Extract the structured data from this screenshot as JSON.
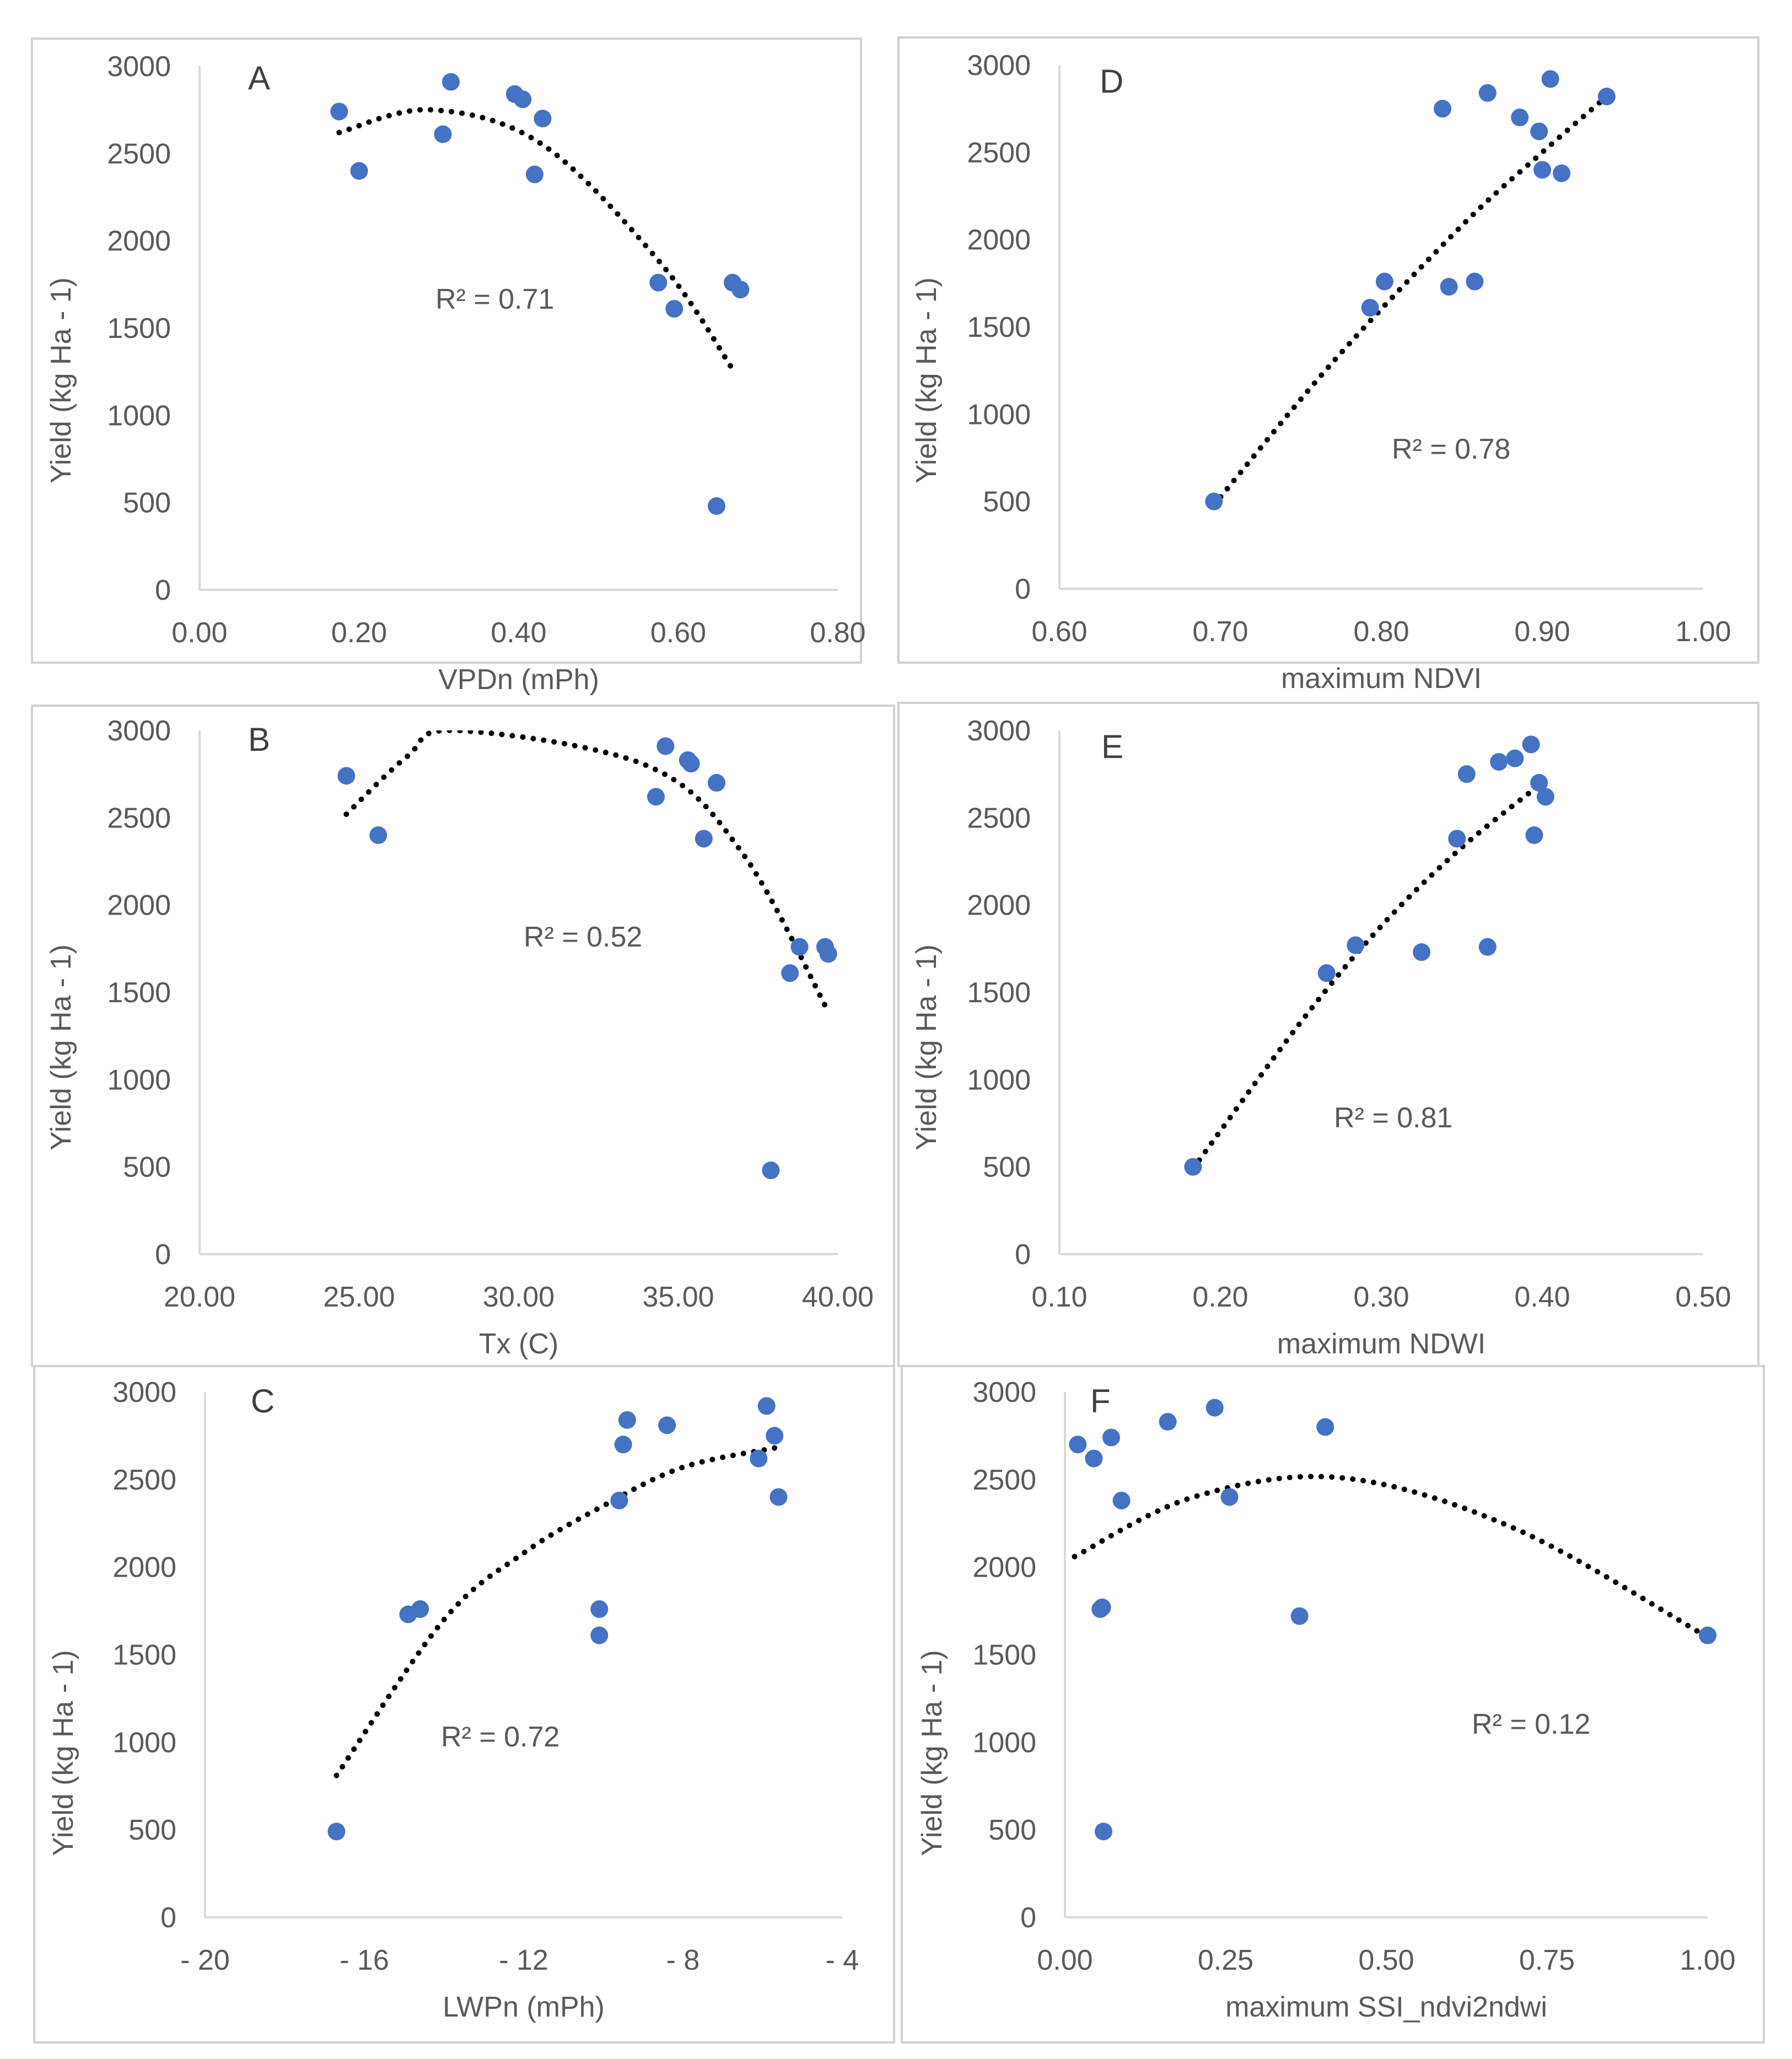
{
  "colors": {
    "point": "#4472C4",
    "trend": "#000000",
    "axis": "#d9d9d9",
    "text": "#595959"
  },
  "chart_data": [
    {
      "type": "scatter",
      "panel": "A",
      "xlabel": "VPDn (mPh)",
      "ylabel": "Yield (kg Ha - 1)",
      "xlim": [
        0.0,
        0.8
      ],
      "ylim": [
        0,
        3000
      ],
      "xticks": [
        "0.00",
        "0.20",
        "0.40",
        "0.60",
        "0.80"
      ],
      "yticks": [
        "0",
        "500",
        "1000",
        "1500",
        "2000",
        "2500",
        "3000"
      ],
      "r2_text": "R² = 0.71",
      "points": [
        [
          0.175,
          2740
        ],
        [
          0.2,
          2400
        ],
        [
          0.305,
          2610
        ],
        [
          0.315,
          2910
        ],
        [
          0.395,
          2840
        ],
        [
          0.405,
          2810
        ],
        [
          0.42,
          2380
        ],
        [
          0.43,
          2700
        ],
        [
          0.575,
          1760
        ],
        [
          0.595,
          1610
        ],
        [
          0.648,
          480
        ],
        [
          0.668,
          1760
        ],
        [
          0.678,
          1720
        ]
      ],
      "trendline": {
        "degree": 2,
        "x_range": [
          0.175,
          0.67
        ],
        "points": [
          [
            0.175,
            2620
          ],
          [
            0.29,
            2750
          ],
          [
            0.43,
            2550
          ],
          [
            0.58,
            1860
          ],
          [
            0.67,
            1250
          ]
        ]
      }
    },
    {
      "type": "scatter",
      "panel": "D",
      "xlabel": "maximum NDVI",
      "ylabel": "Yield (kg Ha - 1)",
      "xlim": [
        0.6,
        1.0
      ],
      "ylim": [
        0,
        3000
      ],
      "xticks": [
        "0.60",
        "0.70",
        "0.80",
        "0.90",
        "1.00"
      ],
      "yticks": [
        "0",
        "500",
        "1000",
        "1500",
        "2000",
        "2500",
        "3000"
      ],
      "r2_text": "R² = 0.78",
      "points": [
        [
          0.696,
          500
        ],
        [
          0.793,
          1610
        ],
        [
          0.802,
          1760
        ],
        [
          0.838,
          2750
        ],
        [
          0.842,
          1730
        ],
        [
          0.858,
          1760
        ],
        [
          0.866,
          2840
        ],
        [
          0.886,
          2700
        ],
        [
          0.898,
          2620
        ],
        [
          0.9,
          2400
        ],
        [
          0.905,
          2920
        ],
        [
          0.912,
          2380
        ],
        [
          0.94,
          2820
        ]
      ],
      "trendline": {
        "degree": 2,
        "x_range": [
          0.696,
          0.94
        ],
        "points": [
          [
            0.696,
            480
          ],
          [
            0.77,
            1300
          ],
          [
            0.85,
            2080
          ],
          [
            0.9,
            2500
          ],
          [
            0.94,
            2820
          ]
        ]
      }
    },
    {
      "type": "scatter",
      "panel": "B",
      "xlabel": "Tx (C)",
      "ylabel": "Yield (kg Ha - 1)",
      "xlim": [
        20.0,
        40.0
      ],
      "ylim": [
        0,
        3000
      ],
      "xticks": [
        "20.00",
        "25.00",
        "30.00",
        "35.00",
        "40.00"
      ],
      "yticks": [
        "0",
        "500",
        "1000",
        "1500",
        "2000",
        "2500",
        "3000"
      ],
      "r2_text": "R² = 0.52",
      "points": [
        [
          24.6,
          2740
        ],
        [
          25.6,
          2400
        ],
        [
          34.3,
          2620
        ],
        [
          34.6,
          2910
        ],
        [
          35.3,
          2830
        ],
        [
          35.4,
          2810
        ],
        [
          35.8,
          2380
        ],
        [
          36.2,
          2700
        ],
        [
          37.9,
          480
        ],
        [
          38.5,
          1610
        ],
        [
          38.8,
          1760
        ],
        [
          39.6,
          1760
        ],
        [
          39.7,
          1720
        ]
      ],
      "trendline": {
        "degree": 2,
        "x_range": [
          24.6,
          39.7
        ],
        "points": [
          [
            24.6,
            2520
          ],
          [
            26.5,
            2850
          ],
          [
            28.0,
            3000
          ],
          [
            34.0,
            2800
          ],
          [
            37.0,
            2300
          ],
          [
            39.7,
            1390
          ]
        ]
      }
    },
    {
      "type": "scatter",
      "panel": "E",
      "xlabel": "maximum NDWI",
      "ylabel": "Yield (kg Ha - 1)",
      "xlim": [
        0.1,
        0.5
      ],
      "ylim": [
        0,
        3000
      ],
      "xticks": [
        "0.10",
        "0.20",
        "0.30",
        "0.40",
        "0.50"
      ],
      "yticks": [
        "0",
        "500",
        "1000",
        "1500",
        "2000",
        "2500",
        "3000"
      ],
      "r2_text": "R² = 0.81",
      "points": [
        [
          0.183,
          500
        ],
        [
          0.266,
          1610
        ],
        [
          0.284,
          1770
        ],
        [
          0.325,
          1730
        ],
        [
          0.347,
          2380
        ],
        [
          0.353,
          2750
        ],
        [
          0.366,
          1760
        ],
        [
          0.373,
          2820
        ],
        [
          0.383,
          2840
        ],
        [
          0.393,
          2920
        ],
        [
          0.395,
          2400
        ],
        [
          0.398,
          2700
        ],
        [
          0.402,
          2620
        ]
      ],
      "trendline": {
        "degree": 2,
        "x_range": [
          0.183,
          0.4
        ],
        "points": [
          [
            0.183,
            490
          ],
          [
            0.25,
            1330
          ],
          [
            0.3,
            1880
          ],
          [
            0.35,
            2330
          ],
          [
            0.4,
            2700
          ]
        ]
      }
    },
    {
      "type": "scatter",
      "panel": "C",
      "xlabel": "LWPn (mPh)",
      "ylabel": "Yield (kg Ha - 1)",
      "xlim": [
        -20,
        -4
      ],
      "ylim": [
        0,
        3000
      ],
      "xticks": [
        "- 20",
        "- 16",
        "- 12",
        "- 8",
        "- 4"
      ],
      "yticks": [
        "0",
        "500",
        "1000",
        "1500",
        "2000",
        "2500",
        "3000"
      ],
      "r2_text": "R² = 0.72",
      "points": [
        [
          -16.7,
          490
        ],
        [
          -14.9,
          1730
        ],
        [
          -14.6,
          1760
        ],
        [
          -10.1,
          1610
        ],
        [
          -10.1,
          1760
        ],
        [
          -9.6,
          2380
        ],
        [
          -9.5,
          2700
        ],
        [
          -9.4,
          2840
        ],
        [
          -8.4,
          2810
        ],
        [
          -6.1,
          2620
        ],
        [
          -5.9,
          2920
        ],
        [
          -5.7,
          2750
        ],
        [
          -5.6,
          2400
        ]
      ],
      "trendline": {
        "degree": 2,
        "x_range": [
          -16.7,
          -5.7
        ],
        "points": [
          [
            -16.7,
            810
          ],
          [
            -14.0,
            1700
          ],
          [
            -12.0,
            2080
          ],
          [
            -10.0,
            2350
          ],
          [
            -8.0,
            2570
          ],
          [
            -5.7,
            2680
          ]
        ]
      }
    },
    {
      "type": "scatter",
      "panel": "F",
      "xlabel": "maximum SSI_ndvi2ndwi",
      "ylabel": "Yield (kg Ha - 1)",
      "xlim": [
        0.0,
        1.0
      ],
      "ylim": [
        0,
        3000
      ],
      "xticks": [
        "0.00",
        "0.25",
        "0.50",
        "0.75",
        "1.00"
      ],
      "yticks": [
        "0",
        "500",
        "1000",
        "1500",
        "2000",
        "2500",
        "3000"
      ],
      "r2_text": "R² = 0.12",
      "points": [
        [
          0.02,
          2700
        ],
        [
          0.045,
          2620
        ],
        [
          0.055,
          1760
        ],
        [
          0.058,
          1770
        ],
        [
          0.06,
          490
        ],
        [
          0.072,
          2740
        ],
        [
          0.088,
          2380
        ],
        [
          0.16,
          2830
        ],
        [
          0.233,
          2910
        ],
        [
          0.256,
          2400
        ],
        [
          0.365,
          1720
        ],
        [
          0.405,
          2800
        ],
        [
          1.0,
          1610
        ]
      ],
      "trendline": {
        "degree": 2,
        "x_range": [
          0.015,
          1.0
        ],
        "points": [
          [
            0.015,
            2060
          ],
          [
            0.2,
            2400
          ],
          [
            0.43,
            2510
          ],
          [
            0.7,
            2220
          ],
          [
            1.0,
            1600
          ]
        ]
      }
    }
  ]
}
